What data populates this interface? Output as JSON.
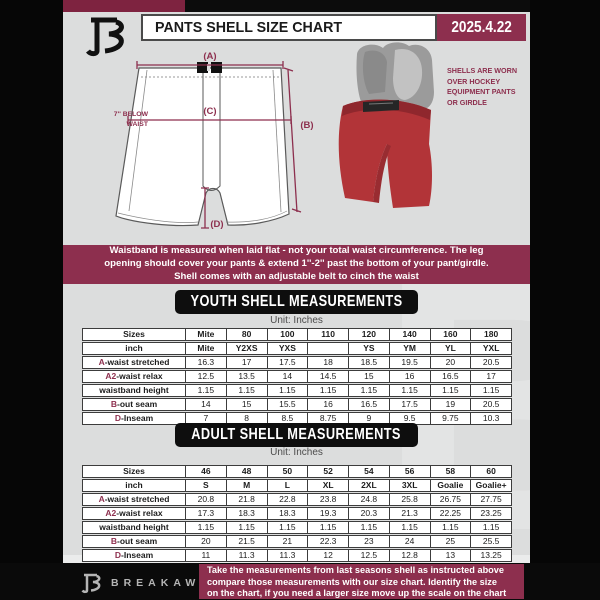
{
  "header": {
    "title": "PANTS SHELL SIZE CHART",
    "date": "2025.4.22"
  },
  "diagram": {
    "label_a": "(A)",
    "label_b": "(B)",
    "label_c": "(C)",
    "label_d": "(D)",
    "below_waist_note": [
      "7'' BELOW",
      "WAIST"
    ],
    "shell_note": [
      "SHELLS ARE WORN",
      "OVER HOCKEY",
      "EQUIPMENT PANTS",
      "OR GIRDLE"
    ]
  },
  "banner": {
    "lines": [
      "Waistband is measured when laid flat - not your total waist circumference. The leg",
      "opening should cover your pants & extend 1''-2'' past the bottom of your pant/girdle.",
      "Shell comes with an adjustable belt to cinch the waist"
    ]
  },
  "youth": {
    "title": "YOUTH SHELL MEASUREMENTS",
    "unit": "Unit: Inches",
    "table_rows": [
      {
        "prefix": "",
        "label": "Sizes",
        "bold": true,
        "values": [
          "Mite",
          "80",
          "100",
          "110",
          "120",
          "140",
          "160",
          "180"
        ]
      },
      {
        "prefix": "",
        "label": "inch",
        "bold": true,
        "values": [
          "Mite",
          "Y2XS",
          "YXS",
          "",
          "YS",
          "YM",
          "YL",
          "YXL"
        ]
      },
      {
        "prefix": "A",
        "label": "-waist stretched",
        "bold": false,
        "values": [
          "16.3",
          "17",
          "17.5",
          "18",
          "18.5",
          "19.5",
          "20",
          "20.5"
        ]
      },
      {
        "prefix": "A2",
        "label": "-waist relax",
        "bold": false,
        "values": [
          "12.5",
          "13.5",
          "14",
          "14.5",
          "15",
          "16",
          "16.5",
          "17"
        ]
      },
      {
        "prefix": "",
        "label": "waistband height",
        "bold": false,
        "values": [
          "1.15",
          "1.15",
          "1.15",
          "1.15",
          "1.15",
          "1.15",
          "1.15",
          "1.15"
        ]
      },
      {
        "prefix": "B",
        "label": "-out seam",
        "bold": false,
        "values": [
          "14",
          "15",
          "15.5",
          "16",
          "16.5",
          "17.5",
          "19",
          "20.5"
        ]
      },
      {
        "prefix": "D",
        "label": "-Inseam",
        "bold": false,
        "values": [
          "7",
          "8",
          "8.5",
          "8.75",
          "9",
          "9.5",
          "9.75",
          "10.3"
        ]
      }
    ]
  },
  "adult": {
    "title": "ADULT SHELL MEASUREMENTS",
    "unit": "Unit: Inches",
    "table_rows": [
      {
        "prefix": "",
        "label": "Sizes",
        "bold": true,
        "values": [
          "46",
          "48",
          "50",
          "52",
          "54",
          "56",
          "58",
          "60"
        ]
      },
      {
        "prefix": "",
        "label": "inch",
        "bold": true,
        "values": [
          "S",
          "M",
          "L",
          "XL",
          "2XL",
          "3XL",
          "Goalie",
          "Goalie+"
        ]
      },
      {
        "prefix": "A",
        "label": "-waist stretched",
        "bold": false,
        "values": [
          "20.8",
          "21.8",
          "22.8",
          "23.8",
          "24.8",
          "25.8",
          "26.75",
          "27.75"
        ]
      },
      {
        "prefix": "A2",
        "label": "-waist relax",
        "bold": false,
        "values": [
          "17.3",
          "18.3",
          "18.3",
          "19.3",
          "20.3",
          "21.3",
          "22.25",
          "23.25"
        ]
      },
      {
        "prefix": "",
        "label": "waistband height",
        "bold": false,
        "values": [
          "1.15",
          "1.15",
          "1.15",
          "1.15",
          "1.15",
          "1.15",
          "1.15",
          "1.15"
        ]
      },
      {
        "prefix": "B",
        "label": "-out seam",
        "bold": false,
        "values": [
          "20",
          "21.5",
          "21",
          "22.3",
          "23",
          "24",
          "25",
          "25.5"
        ]
      },
      {
        "prefix": "D",
        "label": "-Inseam",
        "bold": false,
        "values": [
          "11",
          "11.3",
          "11.3",
          "12",
          "12.5",
          "12.8",
          "13",
          "13.25"
        ]
      }
    ]
  },
  "footer": {
    "brand": "BREAKAWAY",
    "lines": [
      "Take the measurements from last seasons shell as instructed above",
      "compare those measurements  with our size chart. Identify the size",
      "on the chart, if you need a larger size move up the scale on the chart"
    ]
  },
  "colors": {
    "maroon": "#8D2F4E",
    "dark_maroon_strip": "#7E2340",
    "background_gray": "#DCDDDD",
    "box_black": "#0E0E0E",
    "shell_red": "#B23438"
  },
  "watermark_letter": "B"
}
